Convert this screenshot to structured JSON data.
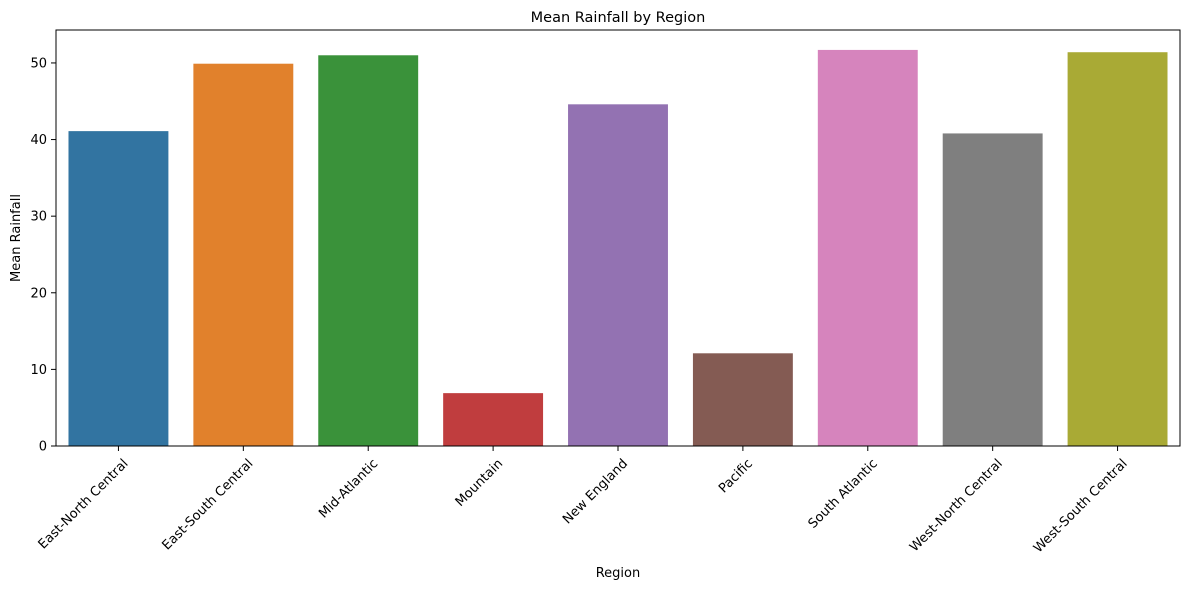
{
  "chart_data": {
    "type": "bar",
    "title": "Mean Rainfall by Region",
    "xlabel": "Region",
    "ylabel": "Mean Rainfall",
    "ylim": [
      0,
      54.3
    ],
    "yticks": [
      0,
      10,
      20,
      30,
      40,
      50
    ],
    "categories": [
      "East-North Central",
      "East-South Central",
      "Mid-Atlantic",
      "Mountain",
      "New England",
      "Pacific",
      "South Atlantic",
      "West-North Central",
      "West-South Central"
    ],
    "values": [
      41.1,
      49.9,
      51.0,
      6.9,
      44.6,
      12.1,
      51.7,
      40.8,
      51.4
    ],
    "colors": [
      "#3274a1",
      "#e1812c",
      "#3a923a",
      "#c03d3e",
      "#9372b2",
      "#845b53",
      "#d684bd",
      "#7f7f7f",
      "#a9aa35"
    ],
    "grid": false,
    "legend": "none"
  }
}
